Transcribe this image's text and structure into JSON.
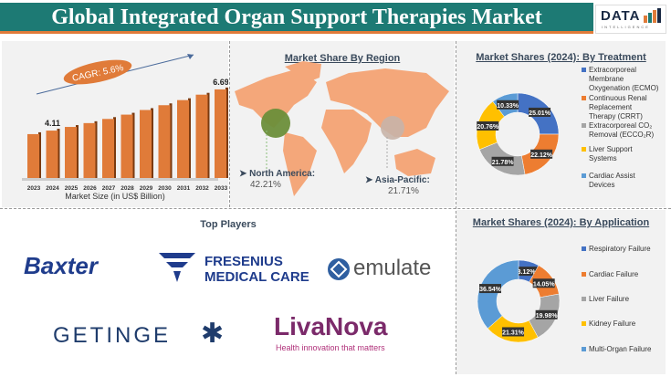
{
  "header": {
    "title": "Global Integrated Organ Support Therapies Market",
    "logo_text": "DATA",
    "logo_sub": "INTELLIGENCE"
  },
  "market_size": {
    "cagr": "CAGR: 5.6%",
    "xlabel": "Market Size (in US$ Billion)",
    "label_2024": "4.11",
    "label_2033": "6.69"
  },
  "region": {
    "title": "Market Share By Region",
    "na_label": "North America:",
    "na_value": "42.21%",
    "ap_label": "Asia-Pacific:",
    "ap_value": "21.71%"
  },
  "players": {
    "title": "Top Players",
    "baxter": "Baxter",
    "fresenius1": "FRESENIUS",
    "fresenius2": "MEDICAL CARE",
    "emulate": "emulate",
    "getinge": "GETINGE",
    "livanova": "LivaNova",
    "livanova_tag": "Health innovation that matters"
  },
  "chart_data": [
    {
      "type": "bar",
      "title": "",
      "xlabel": "Market Size (in US$ Billion)",
      "categories": [
        "2023",
        "2024",
        "2025",
        "2026",
        "2027",
        "2028",
        "2029",
        "2030",
        "2031",
        "2032",
        "2033"
      ],
      "values": [
        3.89,
        4.11,
        4.34,
        4.58,
        4.84,
        5.11,
        5.4,
        5.7,
        6.02,
        6.36,
        6.69
      ],
      "color": "#e07b39"
    },
    {
      "type": "pie",
      "title": "Market Shares (2024): By Treatment",
      "labels": [
        "Extracorporeal Membrane Oxygenation (ECMO)",
        "Continuous Renal Replacement Therapy (CRRT)",
        "Extracorporeal CO₂ Removal (ECCO₂R)",
        "Liver Support Systems",
        "Cardiac Assist Devices"
      ],
      "legend_lines": [
        [
          "Extracorporeal",
          "Membrane",
          "Oxygenation (ECMO)"
        ],
        [
          "Continuous Renal",
          "Replacement",
          "Therapy (CRRT)"
        ],
        [
          "Extracorporeal CO₂",
          "Removal (ECCO₂R)"
        ],
        [
          "Liver Support",
          "Systems"
        ],
        [
          "Cardiac Assist",
          "Devices"
        ]
      ],
      "values": [
        25.01,
        22.12,
        21.78,
        20.76,
        10.33
      ],
      "value_labels": [
        "25.01%",
        "22.12%",
        "21.78%",
        "20.76%",
        "10.33%"
      ],
      "colors": [
        "#4472c4",
        "#ed7d31",
        "#a5a5a5",
        "#ffc000",
        "#5b9bd5"
      ]
    },
    {
      "type": "pie",
      "title": "Market Shares (2024): By Application",
      "labels": [
        "Respiratory Failure",
        "Cardiac Failure",
        "Liver Failure",
        "Kidney Failure",
        "Multi-Organ Failure"
      ],
      "values": [
        8.12,
        14.05,
        19.98,
        21.31,
        36.54
      ],
      "value_labels": [
        "8.12%",
        "14.05%",
        "19.98%",
        "21.31%",
        "36.54%"
      ],
      "colors": [
        "#4472c4",
        "#ed7d31",
        "#a5a5a5",
        "#ffc000",
        "#5b9bd5"
      ]
    }
  ]
}
